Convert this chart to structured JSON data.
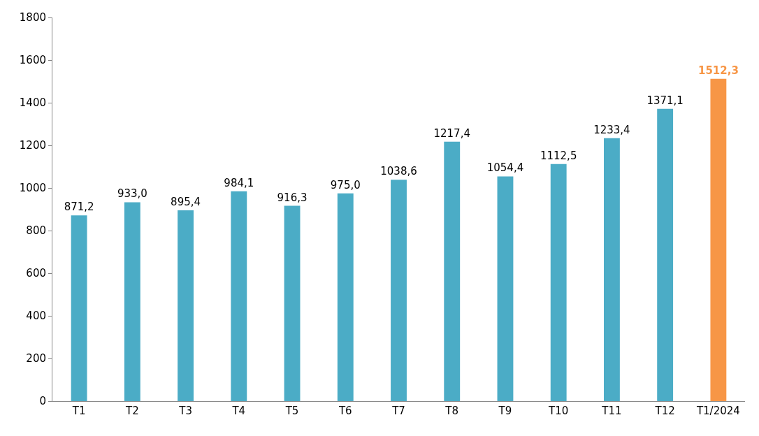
{
  "chart_data": {
    "type": "bar",
    "categories": [
      "T1",
      "T2",
      "T3",
      "T4",
      "T5",
      "T6",
      "T7",
      "T8",
      "T9",
      "T10",
      "T11",
      "T12",
      "T1/2024"
    ],
    "values": [
      871.2,
      933.0,
      895.4,
      984.1,
      916.3,
      975.0,
      1038.6,
      1217.4,
      1054.4,
      1112.5,
      1233.4,
      1371.1,
      1512.3
    ],
    "colors": [
      "#4bacc6",
      "#4bacc6",
      "#4bacc6",
      "#4bacc6",
      "#4bacc6",
      "#4bacc6",
      "#4bacc6",
      "#4bacc6",
      "#4bacc6",
      "#4bacc6",
      "#4bacc6",
      "#4bacc6",
      "#f79646"
    ],
    "value_labels": [
      "871,2",
      "933,0",
      "895,4",
      "984,1",
      "916,3",
      "975,0",
      "1038,6",
      "1217,4",
      "1054,4",
      "1112,5",
      "1233,4",
      "1371,1",
      "1512,3"
    ],
    "ylim": [
      0,
      1800
    ],
    "yticks": [
      0,
      200,
      400,
      600,
      800,
      1000,
      1200,
      1400,
      1600,
      1800
    ],
    "ylabel": null
  }
}
